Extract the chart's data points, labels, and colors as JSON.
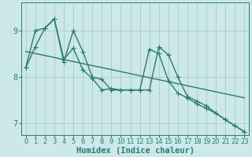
{
  "xlabel": "Humidex (Indice chaleur)",
  "bg_color": "#cce8e8",
  "line_color": "#2a7a72",
  "grid_color": "#aacccc",
  "xlim": [
    -0.5,
    23.5
  ],
  "ylim": [
    6.75,
    9.6
  ],
  "yticks": [
    7,
    8,
    9
  ],
  "xticks": [
    0,
    1,
    2,
    3,
    4,
    5,
    6,
    7,
    8,
    9,
    10,
    11,
    12,
    13,
    14,
    15,
    16,
    17,
    18,
    19,
    20,
    21,
    22,
    23
  ],
  "series1_x": [
    0,
    1,
    2,
    3,
    4,
    5,
    6,
    7,
    8,
    9,
    10,
    11,
    12,
    13,
    14,
    15,
    16,
    17,
    18,
    19,
    20,
    21,
    22,
    23
  ],
  "series1_y": [
    8.2,
    8.65,
    9.05,
    9.25,
    8.38,
    8.62,
    8.15,
    7.97,
    7.72,
    7.75,
    7.72,
    7.72,
    7.72,
    8.6,
    8.5,
    7.92,
    7.65,
    7.55,
    7.42,
    7.32,
    7.22,
    7.08,
    6.95,
    6.82
  ],
  "series2_x": [
    0,
    1,
    2,
    3,
    4,
    5,
    6,
    7,
    8,
    9,
    10,
    11,
    12,
    13,
    14,
    15,
    16,
    17,
    18,
    19,
    20,
    21,
    22,
    23
  ],
  "series2_y": [
    8.2,
    9.0,
    9.05,
    9.25,
    8.32,
    9.0,
    8.55,
    8.0,
    7.95,
    7.72,
    7.72,
    7.72,
    7.72,
    7.72,
    8.65,
    8.48,
    8.0,
    7.58,
    7.48,
    7.38,
    7.22,
    7.08,
    6.95,
    6.82
  ],
  "trend_x": [
    0,
    23
  ],
  "trend_y": [
    8.55,
    7.55
  ],
  "marker": "+",
  "markersize": 4,
  "linewidth": 1.0,
  "tick_fontsize": 6,
  "xlabel_fontsize": 7.5
}
